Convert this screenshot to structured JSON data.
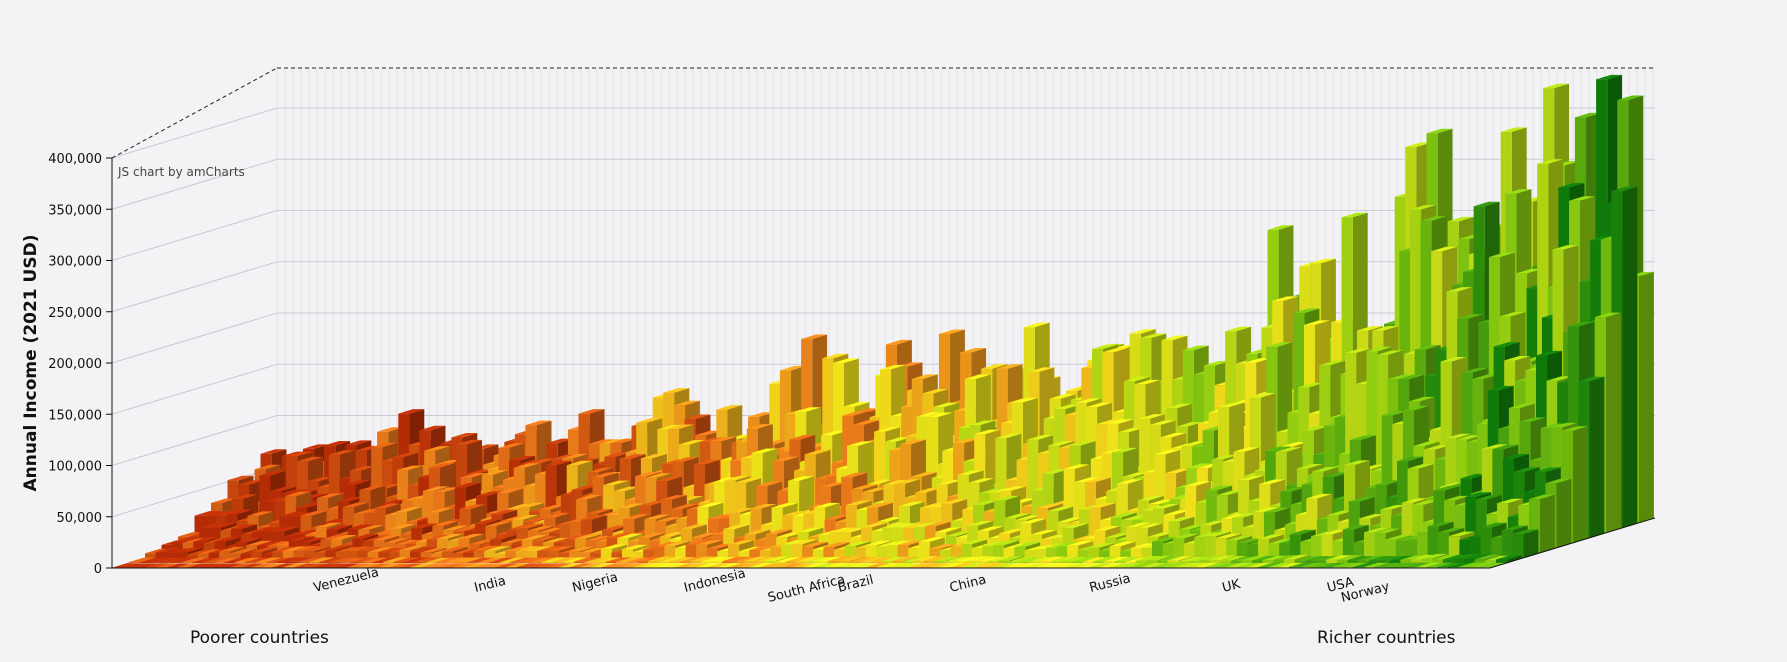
{
  "chart_data": {
    "type": "bar",
    "subtype": "3d-column",
    "ylabel": "Annual Income (2021 USD)",
    "ylim": [
      0,
      400000
    ],
    "yticks": [
      0,
      50000,
      100000,
      150000,
      200000,
      250000,
      300000,
      350000,
      400000
    ],
    "ytick_labels": [
      "0",
      "50,000",
      "100,000",
      "150,000",
      "200,000",
      "250,000",
      "300,000",
      "350,000",
      "400,000"
    ],
    "credit": "JS chart by amCharts",
    "footer_left": "Poorer countries",
    "footer_right": "Richer countries",
    "gridlines": true,
    "x_axis_order": "countries sorted from poorer to richer",
    "depth_axis": "income percentile within each country",
    "countries": [
      {
        "name": "Venezuela",
        "peak": 80000
      },
      {
        "name": "India",
        "peak": 95000
      },
      {
        "name": "Nigeria",
        "peak": 95000
      },
      {
        "name": "Indonesia",
        "peak": 115000
      },
      {
        "name": "South Africa",
        "peak": 165000
      },
      {
        "name": "Brazil",
        "peak": 180000
      },
      {
        "name": "China",
        "peak": 195000
      },
      {
        "name": "Russia",
        "peak": 165000
      },
      {
        "name": "UK",
        "peak": 265000
      },
      {
        "name": "USA",
        "peak": 350000
      },
      {
        "name": "Norway",
        "peak": 400000
      }
    ],
    "colors": {
      "low": "#b42c06",
      "mid_low": "#e8791a",
      "mid": "#f0e21a",
      "mid_high": "#8fcc10",
      "high": "#0f7a0a"
    }
  }
}
